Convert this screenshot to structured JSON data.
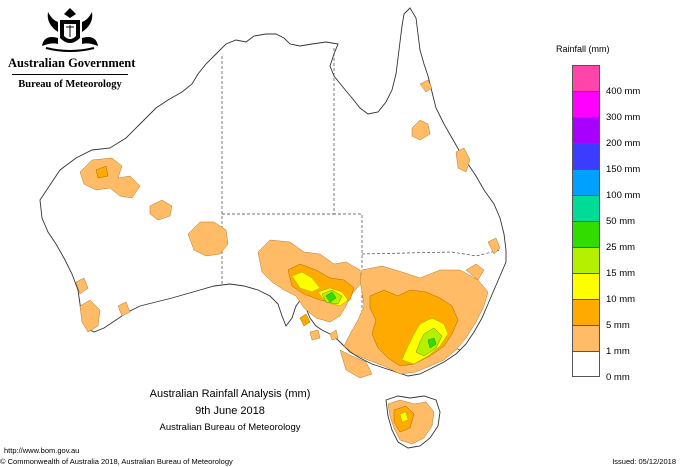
{
  "header": {
    "government": "Australian Government",
    "bureau": "Bureau of Meteorology"
  },
  "legend": {
    "title": "Rainfall (mm)",
    "items": [
      {
        "label": "",
        "color": "#ff44aa"
      },
      {
        "label": "400 mm",
        "color": "#ff00ff"
      },
      {
        "label": "300 mm",
        "color": "#a800ff"
      },
      {
        "label": "200 mm",
        "color": "#3c3cff"
      },
      {
        "label": "150 mm",
        "color": "#00a0ff"
      },
      {
        "label": "100 mm",
        "color": "#00dc96"
      },
      {
        "label": "50 mm",
        "color": "#32dc00"
      },
      {
        "label": "25 mm",
        "color": "#b4f000"
      },
      {
        "label": "15 mm",
        "color": "#ffff00"
      },
      {
        "label": "10 mm",
        "color": "#ffaa00"
      },
      {
        "label": "5 mm",
        "color": "#ffbb66"
      },
      {
        "label": "1 mm",
        "color": "#ffffff"
      },
      {
        "label": "0 mm",
        "color": ""
      }
    ]
  },
  "caption": {
    "title": "Australian Rainfall Analysis (mm)",
    "date": "9th June 2018",
    "source": "Australian Bureau of Meteorology"
  },
  "footer": {
    "url": "http://www.bom.gov.au",
    "copyright": "© Commonwealth of Australia 2018, Australian Bureau of Meteorology",
    "issued": "Issued: 05/12/2018"
  },
  "colors": {
    "light_orange": "#ffbb66",
    "orange": "#ffaa00",
    "yellow": "#ffff00",
    "yellow_green": "#b4f000",
    "green": "#32dc00"
  }
}
